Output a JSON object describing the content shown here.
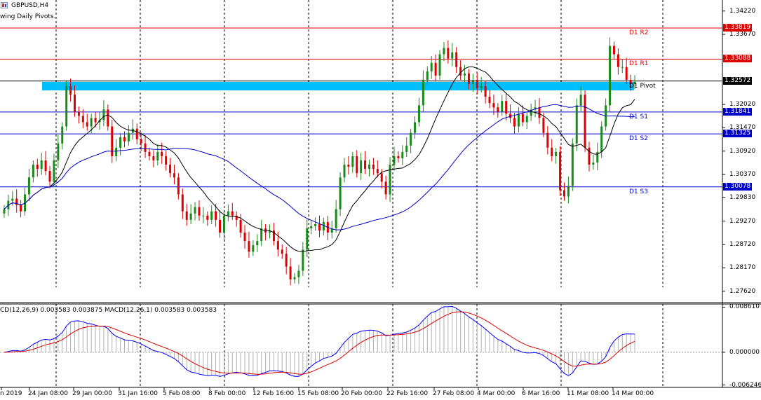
{
  "header": {
    "symbol_label": "GBPUSD,H4",
    "indicator_label": "wing Daily Pivots.",
    "macd_label": "CD(12,26,9) 0.003583 0.003875 MACD(12,26,1) 0.003583 0.003583"
  },
  "colors": {
    "resistance": "#e00000",
    "support": "#0000cc",
    "pivot": "#000000",
    "zone": "#00bfff",
    "bull_candle": "#1a8a1a",
    "bear_candle": "#dd0000",
    "sma_fast": "#000000",
    "sma_slow": "#0000cc",
    "macd_line": "#0000ff",
    "signal_line": "#dd0000",
    "histogram": "#b0b0b0"
  },
  "price_axis": {
    "ticks": [
      "1.34220",
      "1.33670",
      "1.32020",
      "1.31470",
      "1.30920",
      "1.30370",
      "1.29830",
      "1.29270",
      "1.28720",
      "1.28170",
      "1.27620"
    ]
  },
  "macd_axis": {
    "ticks": [
      "0.008610",
      "0.000000",
      "-0.006246"
    ]
  },
  "pivot_levels": [
    {
      "label": "D1 R2",
      "tag": "1.33819",
      "kind": "resistance"
    },
    {
      "label": "D1 R1",
      "tag": "1.33088",
      "kind": "resistance"
    },
    {
      "label": "D1 Pivot",
      "tag": "1.32572",
      "kind": "pivot"
    },
    {
      "label": "D1 S1",
      "tag": "1.31841",
      "kind": "support"
    },
    {
      "label": "D1 S2",
      "tag": "1.31325",
      "kind": "support"
    },
    {
      "label": "D1 S3",
      "tag": "1.30078",
      "kind": "support"
    }
  ],
  "time_axis": {
    "ticks": [
      "n 2019",
      "24 Jan 08:00",
      "29 Jan 00:00",
      "31 Jan 16:00",
      "5 Feb 08:00",
      "8 Feb 00:00",
      "12 Feb 16:00",
      "15 Feb 08:00",
      "20 Feb 00:00",
      "22 Feb 16:00",
      "27 Feb 08:00",
      "4 Mar 00:00",
      "6 Mar 16:00",
      "11 Mar 08:00",
      "14 Mar 00:00"
    ]
  },
  "chart_data": {
    "type": "candlestick",
    "symbol": "GBPUSD",
    "timeframe": "H4",
    "price_range": [
      1.2735,
      1.3448
    ],
    "macd_range": [
      -0.0067,
      0.0092
    ],
    "levels": {
      "R2": 1.33819,
      "R1": 1.33088,
      "Pivot": 1.32572,
      "S1": 1.31841,
      "S2": 1.31325,
      "S3": 1.30078
    },
    "zone": [
      1.3235,
      1.3255
    ],
    "closes": [
      1.2955,
      1.2975,
      1.298,
      1.2965,
      1.295,
      1.299,
      1.303,
      1.306,
      1.305,
      1.307,
      1.3045,
      1.302,
      1.307,
      1.311,
      1.315,
      1.3245,
      1.3225,
      1.3185,
      1.3175,
      1.316,
      1.315,
      1.317,
      1.316,
      1.3165,
      1.319,
      1.315,
      1.308,
      1.31,
      1.3125,
      1.3115,
      1.3135,
      1.3145,
      1.312,
      1.311,
      1.309,
      1.308,
      1.307,
      1.309,
      1.308,
      1.306,
      1.304,
      1.303,
      1.299,
      1.295,
      1.293,
      1.2945,
      1.296,
      1.294,
      1.294,
      1.293,
      1.295,
      1.293,
      1.29,
      1.294,
      1.295,
      1.294,
      1.293,
      1.29,
      1.288,
      1.2855,
      1.287,
      1.288,
      1.291,
      1.29,
      1.2905,
      1.288,
      1.286,
      1.285,
      1.282,
      1.279,
      1.2795,
      1.281,
      1.286,
      1.291,
      1.2915,
      1.292,
      1.2905,
      1.2925,
      1.29,
      1.291,
      1.2955,
      1.303,
      1.306,
      1.3055,
      1.308,
      1.304,
      1.307,
      1.305,
      1.306,
      1.305,
      1.304,
      1.302,
      1.299,
      1.306,
      1.308,
      1.3075,
      1.309,
      1.3105,
      1.3135,
      1.316,
      1.32,
      1.326,
      1.328,
      1.33,
      1.327,
      1.332,
      1.3335,
      1.331,
      1.3325,
      1.329,
      1.327,
      1.3275,
      1.325,
      1.326,
      1.324,
      1.3245,
      1.322,
      1.3205,
      1.3195,
      1.3185,
      1.321,
      1.318,
      1.317,
      1.315,
      1.318,
      1.316,
      1.3175,
      1.319,
      1.3195,
      1.317,
      1.3135,
      1.31,
      1.308,
      1.309,
      1.3,
      1.2985,
      1.301,
      1.311,
      1.32,
      1.3225,
      1.31,
      1.306,
      1.3065,
      1.309,
      1.315,
      1.32,
      1.334,
      1.332,
      1.329,
      1.329,
      1.326,
      1.325,
      1.3255
    ]
  }
}
